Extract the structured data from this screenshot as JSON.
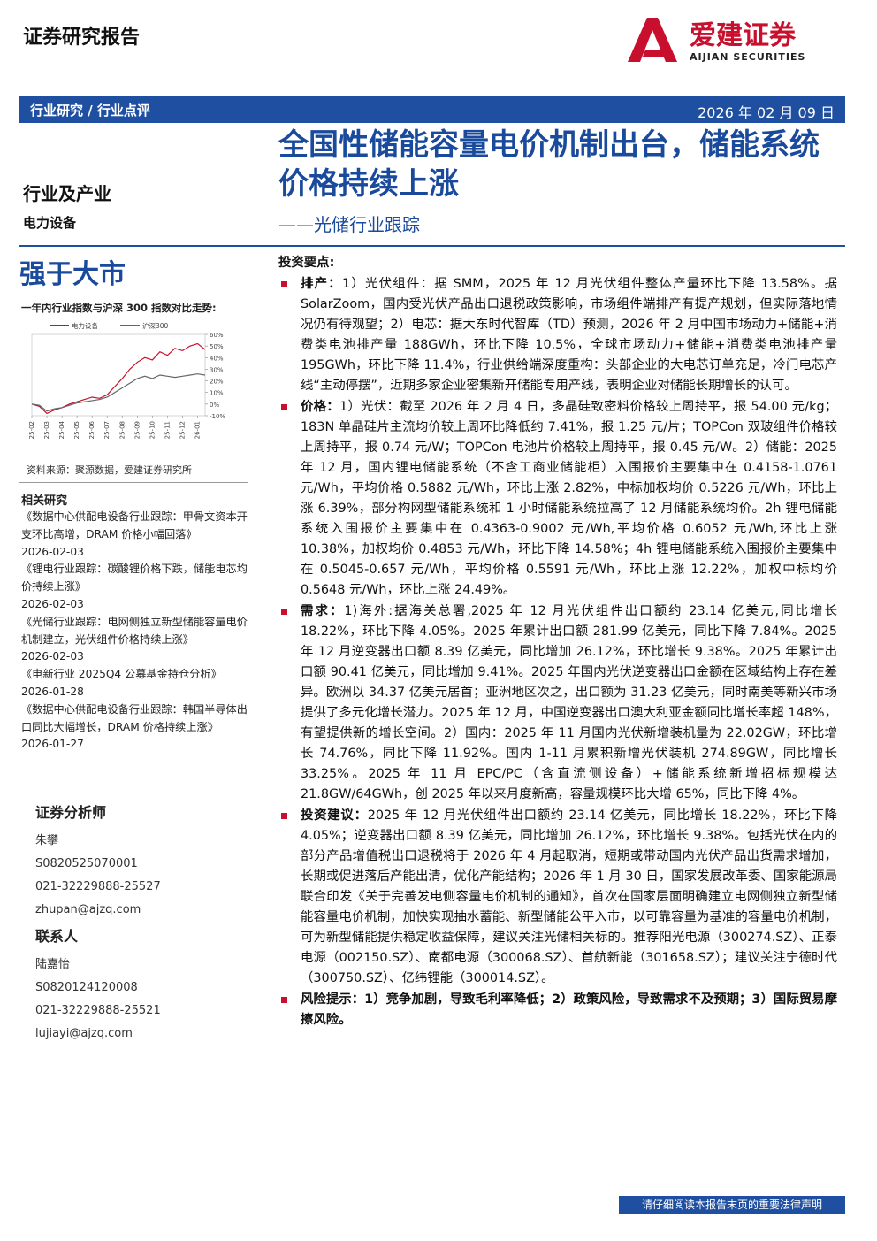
{
  "header": {
    "label": "证券研究报告",
    "brand": "爱建证券",
    "brand_en": "AIJIAN SECURITIES",
    "category": "行业研究 / 行业点评",
    "date": "2026 年 02 月 09 日"
  },
  "title": "全国性储能容量电价机制出台，储能系统价格持续上涨",
  "subtitle": "——光储行业跟踪",
  "industry": "行业及产业",
  "sector": "电力设备",
  "rating": "强于大市",
  "chart_caption": "一年内行业指数与沪深 300 指数对比走势:",
  "chart_data": {
    "type": "line",
    "categories": [
      "25-02",
      null,
      "25-03",
      null,
      "25-04",
      null,
      "25-05",
      null,
      "25-06",
      null,
      "25-07",
      null,
      "25-08",
      null,
      "25-09",
      null,
      "25-10",
      null,
      "25-11",
      null,
      "25-12",
      null,
      "26-01",
      null
    ],
    "series": [
      {
        "name": "电力设备",
        "color": "#c8102e",
        "values": [
          0,
          -2,
          -8,
          -5,
          -3,
          0,
          2,
          4,
          6,
          5,
          8,
          15,
          22,
          30,
          36,
          40,
          38,
          45,
          42,
          48,
          46,
          50,
          52,
          47
        ]
      },
      {
        "name": "沪深300",
        "color": "#666666",
        "values": [
          0,
          -1,
          -6,
          -4,
          -3,
          -1,
          1,
          2,
          3,
          4,
          6,
          10,
          14,
          18,
          22,
          24,
          22,
          25,
          24,
          23,
          24,
          25,
          26,
          25
        ]
      }
    ],
    "ylim": [
      -10,
      60
    ],
    "yticks": [
      {
        "value": -10,
        "label": "-10%"
      },
      {
        "value": 0,
        "label": "0%"
      },
      {
        "value": 10,
        "label": "10%"
      },
      {
        "value": 20,
        "label": "20%"
      },
      {
        "value": 30,
        "label": "30%"
      },
      {
        "value": 40,
        "label": "40%"
      },
      {
        "value": 50,
        "label": "50%"
      },
      {
        "value": 60,
        "label": "60%"
      }
    ]
  },
  "chart_source": "资料来源：聚源数据，爱建证券研究所",
  "related": {
    "heading": "相关研究",
    "items": [
      {
        "title": "《数据中心供配电设备行业跟踪：甲骨文资本开支环比高增，DRAM 价格小幅回落》",
        "date": "2026-02-03"
      },
      {
        "title": "《锂电行业跟踪：碳酸锂价格下跌，储能电芯均价持续上涨》",
        "date": "2026-02-03"
      },
      {
        "title": "《光储行业跟踪：电网侧独立新型储能容量电价机制建立，光伏组件价格持续上涨》",
        "date": "2026-02-03"
      },
      {
        "title": "《电新行业 2025Q4 公募基金持仓分析》",
        "date": "2026-01-28"
      },
      {
        "title": "《数据中心供配电设备行业跟踪：韩国半导体出口同比大幅增长，DRAM 价格持续上涨》",
        "date": "2026-01-27"
      }
    ]
  },
  "analysts": {
    "heading": "证券分析师",
    "name": "朱攀",
    "cert": "S0820525070001",
    "phone": "021-32229888-25527",
    "email": "zhupan@ajzq.com"
  },
  "contact": {
    "heading": "联系人",
    "name": "陆嘉怡",
    "cert": "S0820124120008",
    "phone": "021-32229888-25521",
    "email": "lujiayi@ajzq.com"
  },
  "key_points": {
    "heading": "投资要点:",
    "items": [
      {
        "label": "排产：",
        "text": "1）光伏组件：据 SMM，2025 年 12 月光伏组件整体产量环比下降 13.58%。据 SolarZoom，国内受光伏产品出口退税政策影响，市场组件端排产有提产规划，但实际落地情况仍有待观望；2）电芯：据大东时代智库（TD）预测，2026 年 2 月中国市场动力+储能+消费类电池排产量 188GWh，环比下降 10.5%，全球市场动力+储能+消费类电池排产量 195GWh，环比下降 11.4%，行业供给端深度重构：头部企业的大电芯订单充足，冷门电芯产线“主动停摆”，近期多家企业密集新开储能专用产线，表明企业对储能长期增长的认可。"
      },
      {
        "label": "价格：",
        "text": "1）光伏：截至 2026 年 2 月 4 日，多晶硅致密料价格较上周持平，报 54.00 元/kg；183N 单晶硅片主流均价较上周环比降低约 7.41%，报 1.25 元/片；TOPCon 双玻组件价格较上周持平，报 0.74 元/W；TOPCon 电池片价格较上周持平，报 0.45 元/W。2）储能：2025 年 12 月，国内锂电储能系统（不含工商业储能柜）入围报价主要集中在 0.4158-1.0761 元/Wh，平均价格 0.5882 元/Wh，环比上涨 2.82%，中标加权均价 0.5226 元/Wh，环比上涨 6.39%，部分构网型储能系统和 1 小时储能系统拉高了 12 月储能系统均价。2h 锂电储能系统入围报价主要集中在 0.4363-0.9002 元/Wh,平均价格 0.6052 元/Wh,环比上涨 10.38%，加权均价 0.4853 元/Wh，环比下降 14.58%；4h 锂电储能系统入围报价主要集中在 0.5045-0.657 元/Wh，平均价格 0.5591 元/Wh，环比上涨 12.22%，加权中标均价 0.5648 元/Wh，环比上涨 24.49%。"
      },
      {
        "label": "需求：",
        "text": "1)海外:据海关总署,2025 年 12 月光伏组件出口额约 23.14 亿美元,同比增长 18.22%，环比下降 4.05%。2025 年累计出口额 281.99 亿美元，同比下降 7.84%。2025 年 12 月逆变器出口额 8.39 亿美元，同比增加 26.12%，环比增长 9.38%。2025 年累计出口额 90.41 亿美元，同比增加 9.41%。2025 年国内光伏逆变器出口金额在区域结构上存在差异。欧洲以 34.37 亿美元居首；亚洲地区次之，出口额为 31.23 亿美元，同时南美等新兴市场提供了多元化增长潜力。2025 年 12 月，中国逆变器出口澳大利亚金额同比增长率超 148%，有望提供新的增长空间。2）国内：2025 年 11 月国内光伏新增装机量为 22.02GW，环比增长 74.76%，同比下降 11.92%。国内 1-11 月累积新增光伏装机 274.89GW，同比增长 33.25%。2025 年 11 月 EPC/PC（含直流侧设备）+储能系统新增招标规模达 21.8GW/64GWh，创 2025 年以来月度新高，容量规模环比大增 65%，同比下降 4%。"
      },
      {
        "label": "投资建议：",
        "text": "2025 年 12 月光伏组件出口额约 23.14 亿美元，同比增长 18.22%，环比下降 4.05%；逆变器出口额 8.39 亿美元，同比增加 26.12%，环比增长 9.38%。包括光伏在内的部分产品增值税出口退税将于 2026 年 4 月起取消，短期或带动国内光伏产品出货需求增加，长期或促进落后产能出清，优化产能结构；2026 年 1 月 30 日，国家发展改革委、国家能源局联合印发《关于完善发电侧容量电价机制的通知》，首次在国家层面明确建立电网侧独立新型储能容量电价机制，加快实现抽水蓄能、新型储能公平入市，以可靠容量为基准的容量电价机制，可为新型储能提供稳定收益保障，建议关注光储相关标的。推荐阳光电源（300274.SZ）、正泰电源（002150.SZ）、南都电源（300068.SZ）、首航新能（301658.SZ）；建议关注宁德时代（300750.SZ）、亿纬锂能（300014.SZ）。"
      },
      {
        "label": "风险提示：",
        "bold_text": "1）竞争加剧，导致毛利率降低；2）政策风险，导致需求不及预期；3）国际贸易摩擦风险。"
      }
    ]
  },
  "footer": "请仔细阅读本报告末页的重要法律声明"
}
